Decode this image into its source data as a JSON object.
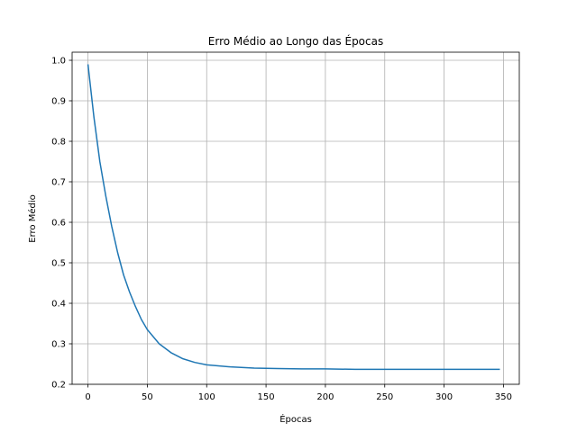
{
  "chart_data": {
    "type": "line",
    "title": "Erro Médio ao Longo das Épocas",
    "xlabel": "Épocas",
    "ylabel": "Erro Médio",
    "xlim": [
      -13.35,
      363.35
    ],
    "ylim": [
      0.2,
      1.02
    ],
    "xticks": [
      0,
      50,
      100,
      150,
      200,
      250,
      300,
      350
    ],
    "yticks": [
      0.2,
      0.3,
      0.4,
      0.5,
      0.6,
      0.7,
      0.8,
      0.9,
      1.0
    ],
    "xtick_labels": [
      "0",
      "50",
      "100",
      "150",
      "200",
      "250",
      "300",
      "350"
    ],
    "ytick_labels": [
      "0.2",
      "0.3",
      "0.4",
      "0.5",
      "0.6",
      "0.7",
      "0.8",
      "0.9",
      "1.0"
    ],
    "grid": true,
    "line_color": "#1f77b4",
    "grid_color": "#b0b0b0",
    "series": [
      {
        "x": [
          0,
          5,
          10,
          15,
          20,
          25,
          30,
          35,
          40,
          45,
          50,
          60,
          70,
          80,
          90,
          100,
          120,
          140,
          160,
          180,
          200,
          225,
          250,
          275,
          300,
          325,
          347
        ],
        "y": [
          0.99,
          0.86,
          0.75,
          0.665,
          0.59,
          0.525,
          0.47,
          0.428,
          0.392,
          0.36,
          0.335,
          0.3,
          0.278,
          0.263,
          0.254,
          0.248,
          0.243,
          0.24,
          0.239,
          0.238,
          0.238,
          0.237,
          0.237,
          0.237,
          0.237,
          0.237,
          0.237
        ]
      }
    ]
  }
}
